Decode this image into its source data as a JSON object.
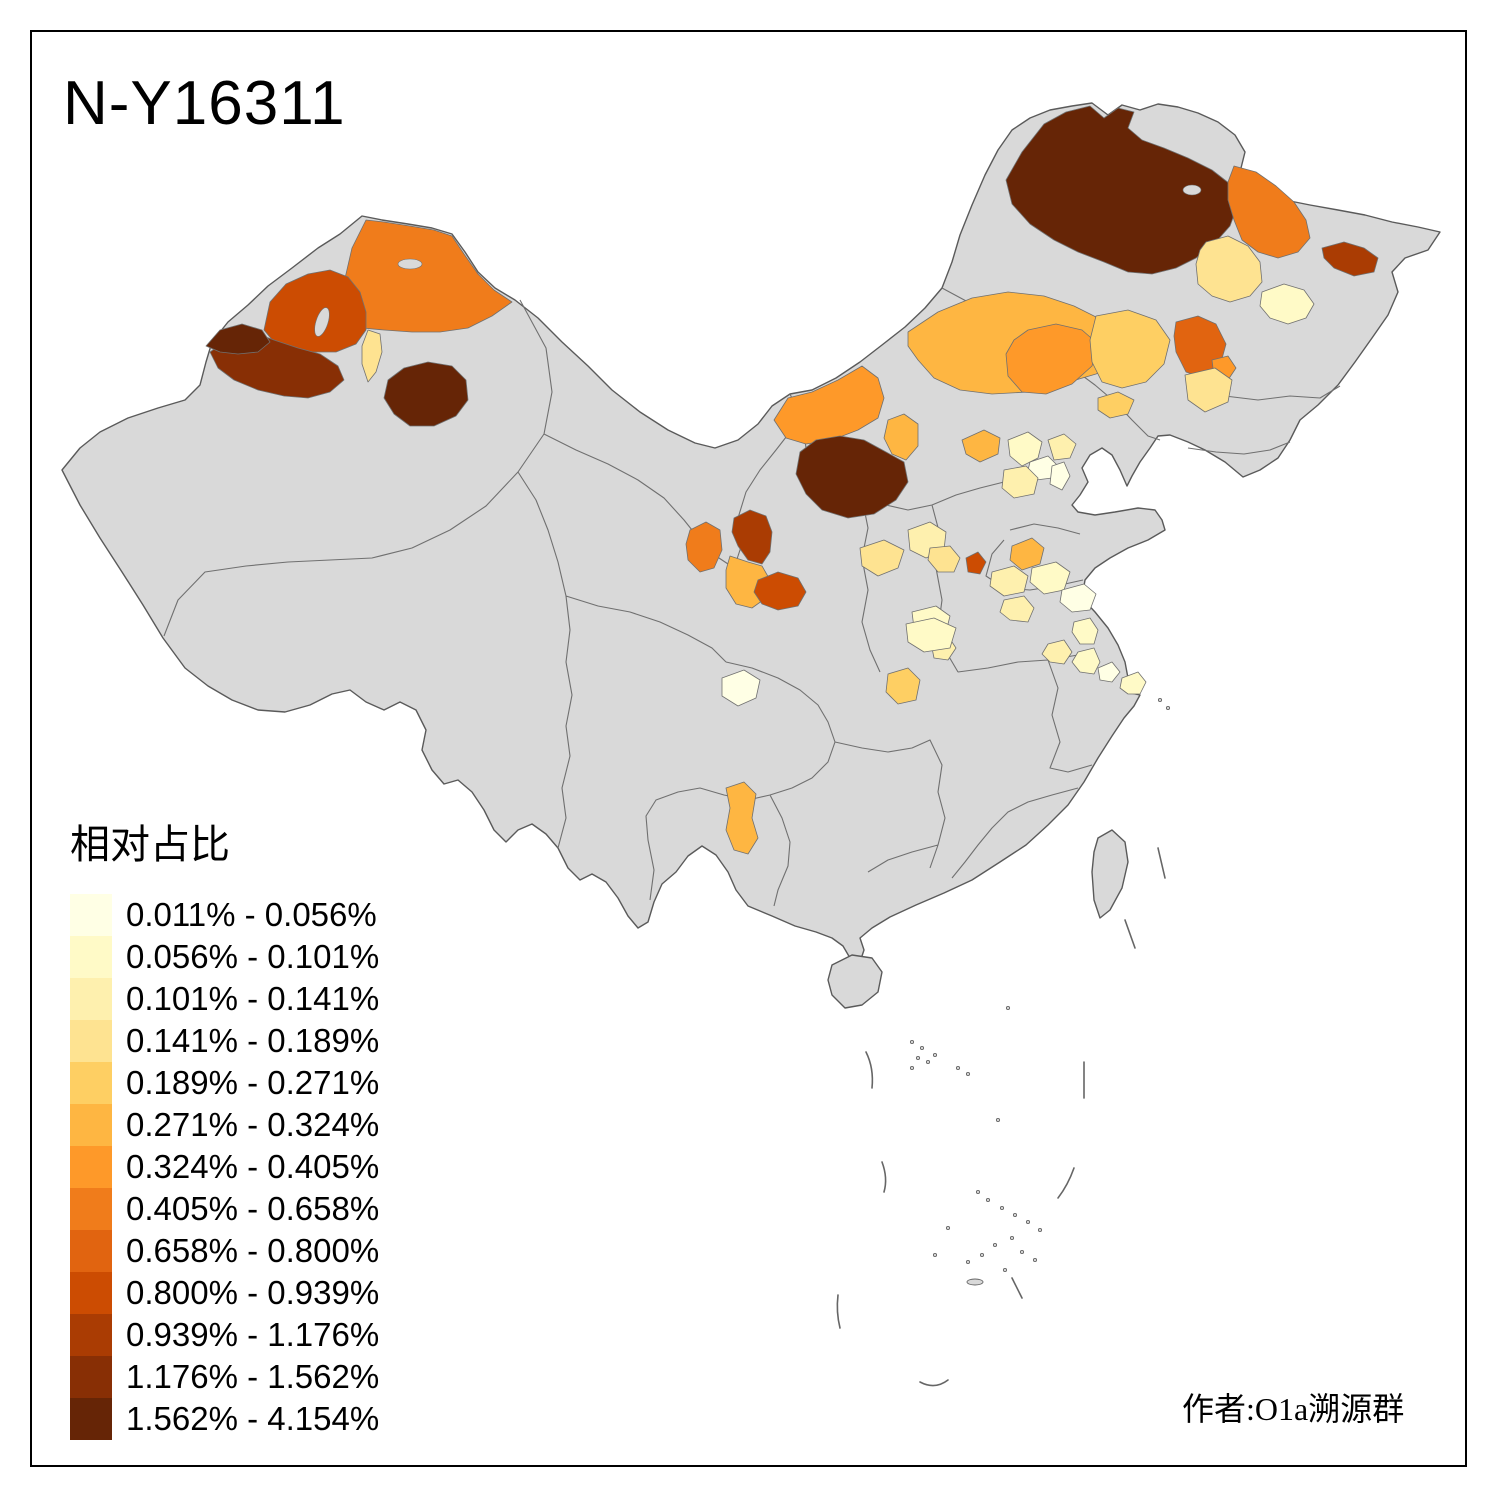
{
  "title": "N-Y16311",
  "attribution": "作者:O1a溯源群",
  "legend": {
    "title": "相对占比",
    "items": [
      {
        "label": "0.011% - 0.056%",
        "color": "#FFFFE5"
      },
      {
        "label": "0.056% - 0.101%",
        "color": "#FFFAC7"
      },
      {
        "label": "0.101% - 0.141%",
        "color": "#FEF0AE"
      },
      {
        "label": "0.141% - 0.189%",
        "color": "#FEE391"
      },
      {
        "label": "0.189% - 0.271%",
        "color": "#FECF63"
      },
      {
        "label": "0.271% - 0.324%",
        "color": "#FEB642"
      },
      {
        "label": "0.324% - 0.405%",
        "color": "#FE9929"
      },
      {
        "label": "0.405% - 0.658%",
        "color": "#F07C1B"
      },
      {
        "label": "0.658% - 0.800%",
        "color": "#E16410"
      },
      {
        "label": "0.800% - 0.939%",
        "color": "#CC4C02"
      },
      {
        "label": "0.939% - 1.176%",
        "color": "#AA3C03"
      },
      {
        "label": "1.176% - 1.562%",
        "color": "#882F05"
      },
      {
        "label": "1.562% - 4.154%",
        "color": "#662506"
      }
    ]
  },
  "map": {
    "background": "#FFFFFF",
    "base_fill": "#D9D9D9",
    "border_color": "#707070",
    "outline_color": "#5A5A5A",
    "frame_color": "#000000"
  }
}
